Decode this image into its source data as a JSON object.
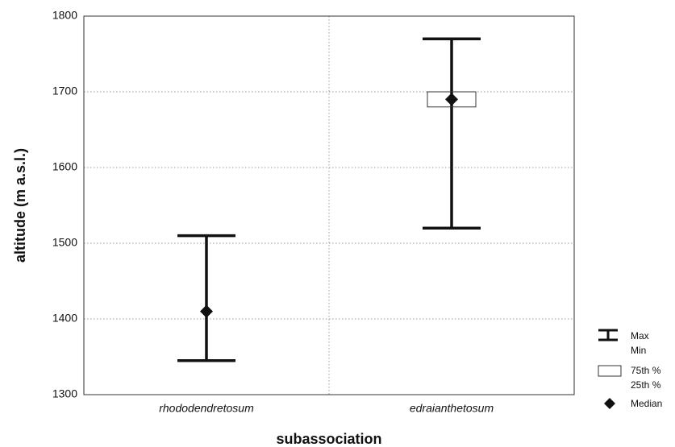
{
  "chart_data": {
    "type": "box",
    "xlabel": "subassociation",
    "ylabel": "altitude (m a.s.l.)",
    "categories": [
      "rhododendretosum",
      "edraianthetosum"
    ],
    "min": [
      1345,
      1520
    ],
    "q1": [
      1411,
      1680
    ],
    "median": [
      1410,
      1690
    ],
    "q3": [
      1411,
      1700
    ],
    "max": [
      1510,
      1770
    ],
    "ylim": [
      1300,
      1800
    ],
    "yticks": [
      1300,
      1400,
      1500,
      1600,
      1700,
      1800
    ],
    "grid": true,
    "color": "#111111",
    "legend": {
      "whisker": [
        "Max",
        "Min"
      ],
      "box": [
        "75th %",
        "25th %"
      ],
      "marker": "Median"
    }
  }
}
